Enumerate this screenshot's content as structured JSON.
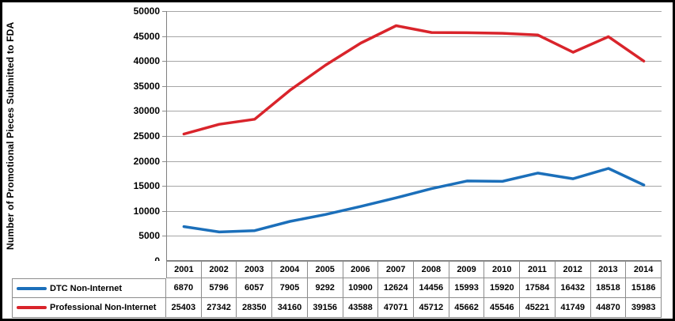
{
  "chart_data": {
    "type": "line",
    "title": "",
    "xlabel": "",
    "ylabel": "Number of Promotional Pieces Submitted to FDA",
    "ylim": [
      0,
      50000
    ],
    "ytick_step": 5000,
    "grid": true,
    "legend_position": "data-table-left",
    "categories": [
      "2001",
      "2002",
      "2003",
      "2004",
      "2005",
      "2006",
      "2007",
      "2008",
      "2009",
      "2010",
      "2011",
      "2012",
      "2013",
      "2014"
    ],
    "series": [
      {
        "name": "DTC Non-Internet",
        "color": "#1B6FBA",
        "values": [
          6870,
          5796,
          6057,
          7905,
          9292,
          10900,
          12624,
          14456,
          15993,
          15920,
          17584,
          16432,
          18518,
          15186
        ]
      },
      {
        "name": "Professional Non-Internet",
        "color": "#D9242B",
        "values": [
          25403,
          27342,
          28350,
          34160,
          39156,
          43588,
          47071,
          45712,
          45662,
          45546,
          45221,
          41749,
          44870,
          39983
        ]
      }
    ]
  },
  "colors": {
    "gridline": "#A6A6A6",
    "axis_line": "#808080",
    "table_border": "#8C8C8C",
    "text": "#000000",
    "background": "#FFFFFF",
    "frame_border": "#000000"
  }
}
